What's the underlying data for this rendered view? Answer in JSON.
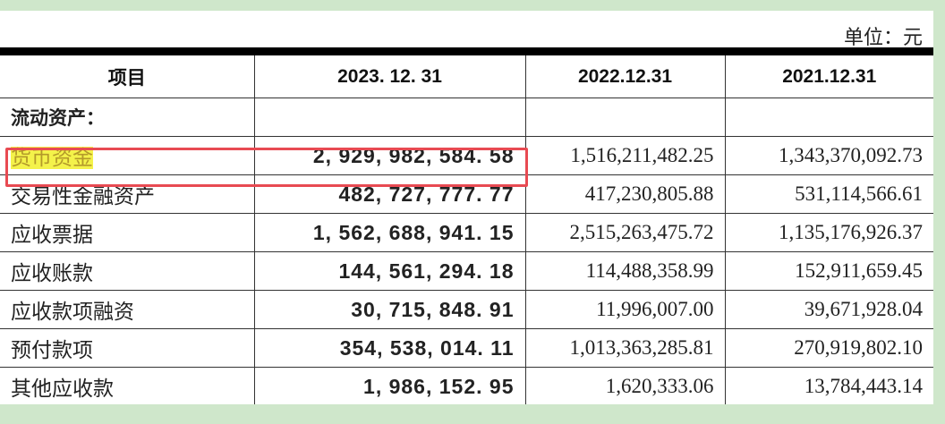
{
  "unit_label": "单位：元",
  "headers": [
    "项目",
    "2023. 12. 31",
    "2022.12.31",
    "2021.12.31"
  ],
  "section_title": "流动资产：",
  "rows": [
    {
      "item": "货币资金",
      "v2023": "2, 929, 982, 584. 58",
      "v2022": "1,516,211,482.25",
      "v2021": "1,343,370,092.73",
      "highlighted": true
    },
    {
      "item": "交易性金融资产",
      "v2023": "482, 727, 777. 77",
      "v2022": "417,230,805.88",
      "v2021": "531,114,566.61"
    },
    {
      "item": "应收票据",
      "v2023": "1, 562, 688, 941. 15",
      "v2022": "2,515,263,475.72",
      "v2021": "1,135,176,926.37"
    },
    {
      "item": "应收账款",
      "v2023": "144, 561, 294. 18",
      "v2022": "114,488,358.99",
      "v2021": "152,911,659.45"
    },
    {
      "item": "应收款项融资",
      "v2023": "30, 715, 848. 91",
      "v2022": "11,996,007.00",
      "v2021": "39,671,928.04"
    },
    {
      "item": "预付款项",
      "v2023": "354, 538, 014. 11",
      "v2022": "1,013,363,285.81",
      "v2021": "270,919,802.10"
    },
    {
      "item": "其他应收款",
      "v2023": "1, 986, 152. 95",
      "v2022": "1,620,333.06",
      "v2021": "13,784,443.14"
    }
  ],
  "colors": {
    "highlight": "#f4f24a",
    "box": "#e84a52",
    "frame": "#cfe7cb"
  }
}
